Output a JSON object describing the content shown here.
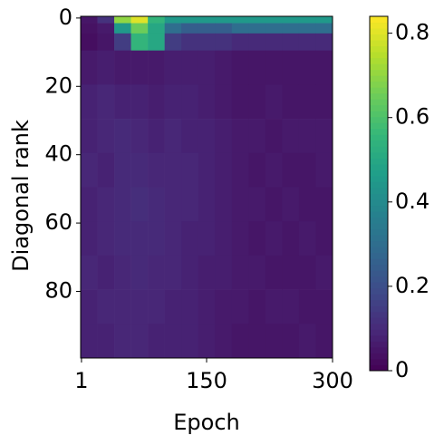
{
  "chart_data": {
    "type": "heatmap",
    "xlabel": "Epoch",
    "ylabel": "Diagonal rank",
    "xbins": [
      0,
      20,
      40,
      60,
      80,
      100,
      120,
      140,
      160,
      180,
      200,
      220,
      240,
      260,
      280,
      300
    ],
    "ybins": [
      -0.5,
      1.5,
      4.5,
      9.5,
      19.5,
      29.5,
      39.5,
      49.5,
      59.5,
      69.5,
      79.5,
      89.5,
      99.5
    ],
    "values": [
      [
        0.05,
        0.12,
        0.7,
        0.8,
        0.55,
        0.45,
        0.45,
        0.45,
        0.45,
        0.45,
        0.45,
        0.45,
        0.45,
        0.45,
        0.45
      ],
      [
        0.04,
        0.06,
        0.45,
        0.65,
        0.5,
        0.3,
        0.25,
        0.25,
        0.25,
        0.3,
        0.3,
        0.3,
        0.3,
        0.3,
        0.3
      ],
      [
        0.03,
        0.05,
        0.15,
        0.55,
        0.5,
        0.15,
        0.12,
        0.12,
        0.12,
        0.1,
        0.1,
        0.1,
        0.1,
        0.1,
        0.1
      ],
      [
        0.06,
        0.07,
        0.06,
        0.06,
        0.06,
        0.07,
        0.07,
        0.07,
        0.06,
        0.05,
        0.05,
        0.05,
        0.05,
        0.05,
        0.05
      ],
      [
        0.08,
        0.09,
        0.08,
        0.08,
        0.07,
        0.08,
        0.08,
        0.07,
        0.06,
        0.05,
        0.05,
        0.06,
        0.05,
        0.05,
        0.05
      ],
      [
        0.08,
        0.09,
        0.1,
        0.09,
        0.08,
        0.09,
        0.08,
        0.08,
        0.07,
        0.06,
        0.06,
        0.05,
        0.06,
        0.06,
        0.06
      ],
      [
        0.09,
        0.08,
        0.1,
        0.1,
        0.09,
        0.09,
        0.09,
        0.08,
        0.07,
        0.06,
        0.05,
        0.06,
        0.05,
        0.05,
        0.06
      ],
      [
        0.08,
        0.09,
        0.1,
        0.11,
        0.1,
        0.09,
        0.09,
        0.08,
        0.07,
        0.06,
        0.06,
        0.05,
        0.06,
        0.05,
        0.05
      ],
      [
        0.08,
        0.09,
        0.1,
        0.1,
        0.1,
        0.09,
        0.08,
        0.08,
        0.07,
        0.06,
        0.05,
        0.06,
        0.05,
        0.06,
        0.05
      ],
      [
        0.09,
        0.08,
        0.09,
        0.1,
        0.09,
        0.09,
        0.08,
        0.07,
        0.07,
        0.06,
        0.06,
        0.05,
        0.05,
        0.05,
        0.06
      ],
      [
        0.08,
        0.09,
        0.09,
        0.09,
        0.09,
        0.08,
        0.08,
        0.07,
        0.06,
        0.06,
        0.05,
        0.06,
        0.06,
        0.05,
        0.05
      ],
      [
        0.08,
        0.08,
        0.09,
        0.09,
        0.08,
        0.08,
        0.08,
        0.07,
        0.06,
        0.05,
        0.05,
        0.05,
        0.05,
        0.06,
        0.05
      ]
    ],
    "xlim": [
      0,
      300
    ],
    "xticks": [
      1,
      150,
      300
    ],
    "ylim": [
      99.5,
      -0.5
    ],
    "yticks": [
      0,
      20,
      40,
      60,
      80
    ],
    "colormap": "viridis",
    "clim": [
      0,
      0.84
    ],
    "cticks": [
      0,
      0.2,
      0.4,
      0.6,
      0.8
    ]
  }
}
